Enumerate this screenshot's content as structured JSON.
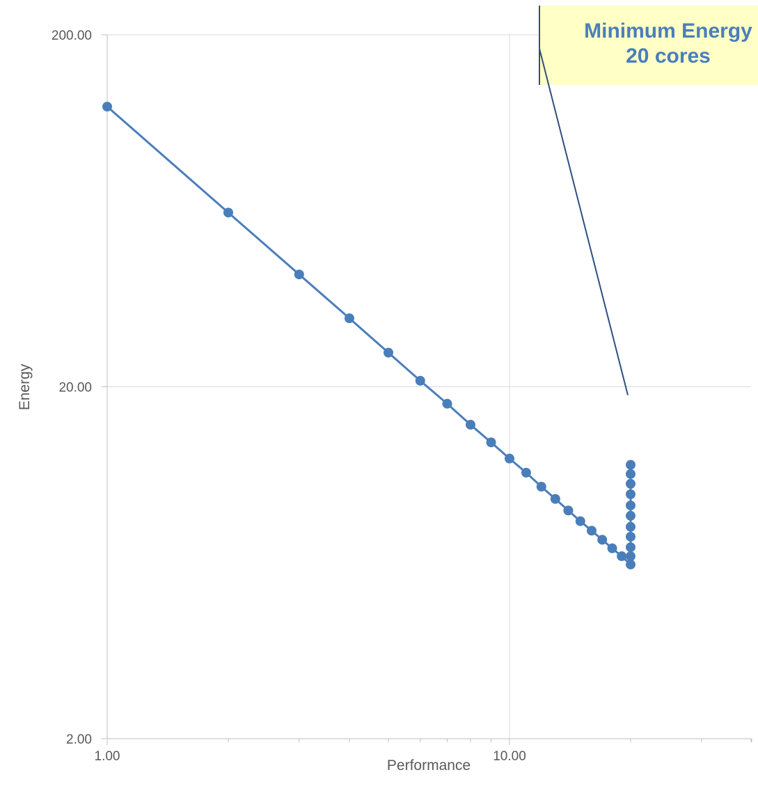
{
  "chart_data": {
    "type": "scatter",
    "xscale": "log",
    "yscale": "log",
    "xlabel": "Performance",
    "ylabel": "Energy",
    "xlim": [
      1,
      50
    ],
    "ylim": [
      2,
      200
    ],
    "xticks": [
      1,
      10
    ],
    "xtick_labels": [
      "1.00",
      "10.00"
    ],
    "yticks": [
      2,
      20,
      200
    ],
    "ytick_labels": [
      "2.00",
      "20.00",
      "200.00"
    ],
    "grid": true,
    "legend": "none",
    "line_color": "#4a7ebb",
    "series": [
      {
        "x": [
          1,
          2,
          3,
          4,
          5,
          6,
          7,
          8,
          9,
          10,
          11,
          12,
          13,
          14,
          15,
          16,
          17,
          18,
          19,
          20,
          20,
          20,
          20,
          20,
          20,
          20,
          20,
          20,
          20,
          20
        ],
        "y": [
          125.0,
          62.5,
          41.7,
          31.3,
          25.0,
          20.8,
          17.9,
          15.6,
          13.9,
          12.5,
          11.4,
          10.4,
          9.6,
          8.9,
          8.3,
          7.8,
          7.35,
          6.95,
          6.6,
          6.25,
          6.6,
          7.0,
          7.5,
          8.0,
          8.6,
          9.2,
          9.9,
          10.6,
          11.3,
          12.0
        ]
      }
    ],
    "annotations": [
      {
        "lines": [
          "Minimum Energy",
          "20 cores"
        ],
        "points_to": [
          20,
          20
        ],
        "background": "#ffffc6"
      }
    ]
  }
}
